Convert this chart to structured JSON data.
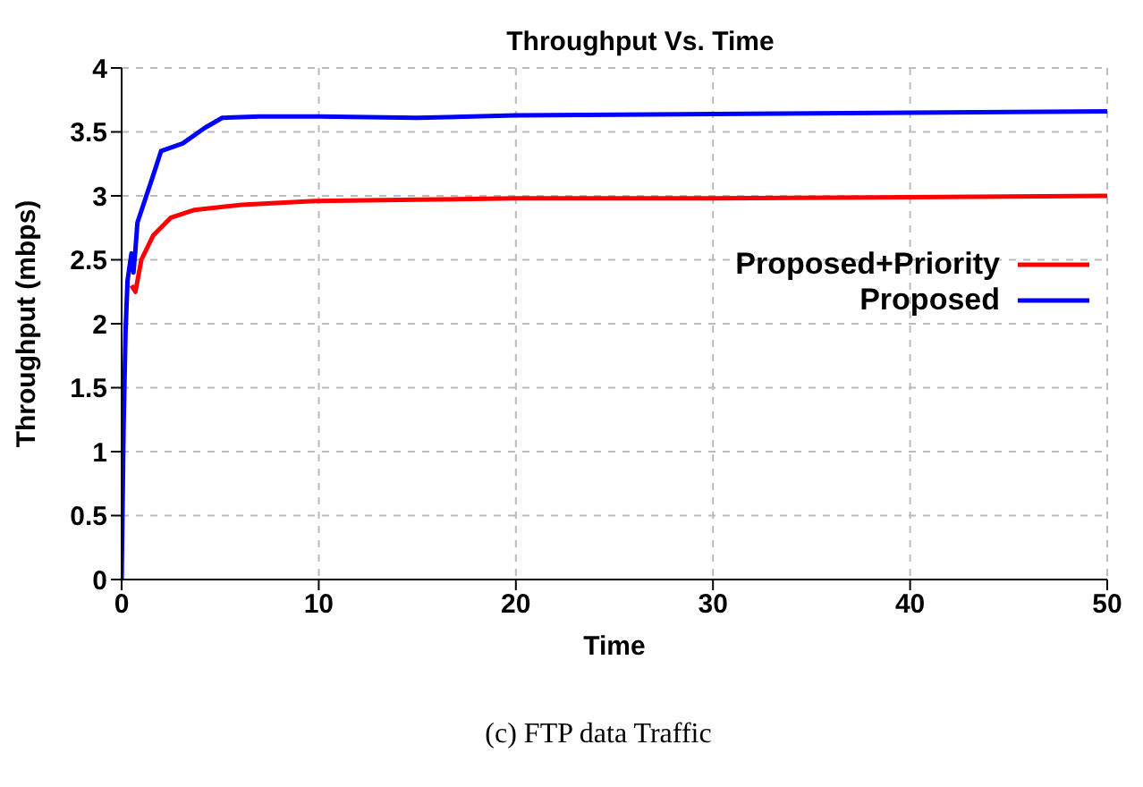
{
  "chart_data": {
    "type": "line",
    "title": "Throughput Vs. Time",
    "xlabel": "Time",
    "ylabel": "Throughput (mbps)",
    "annotations": [
      "(c) FTP data Traffic"
    ],
    "xlim": [
      0,
      50
    ],
    "xticks": [
      0,
      10,
      20,
      30,
      40,
      50
    ],
    "ylim": [
      0,
      4
    ],
    "yticks": [
      0,
      0.5,
      1,
      1.5,
      2,
      2.5,
      3,
      3.5,
      4
    ],
    "grid": true,
    "legend": "right",
    "marker": "none",
    "line_style": "solid",
    "series": [
      {
        "name": "Proposed+Priority",
        "color": "#ff0000",
        "x": [
          0.5,
          0.7,
          1.0,
          1.6,
          2.5,
          3.7,
          6.1,
          9.8,
          15,
          20,
          30,
          40,
          50
        ],
        "values": [
          2.3,
          2.25,
          2.5,
          2.69,
          2.83,
          2.89,
          2.93,
          2.96,
          2.97,
          2.98,
          2.98,
          2.99,
          3.0
        ]
      },
      {
        "name": "Proposed",
        "color": "#0000ff",
        "x": [
          0,
          0.1,
          0.2,
          0.3,
          0.5,
          0.6,
          0.7,
          0.8,
          1.6,
          2.0,
          3.1,
          4.2,
          5.1,
          7,
          10,
          15,
          20,
          30,
          40,
          50
        ],
        "values": [
          0,
          1.2,
          1.95,
          2.34,
          2.55,
          2.4,
          2.58,
          2.79,
          3.16,
          3.35,
          3.41,
          3.53,
          3.61,
          3.62,
          3.62,
          3.61,
          3.63,
          3.64,
          3.65,
          3.66
        ]
      }
    ]
  }
}
